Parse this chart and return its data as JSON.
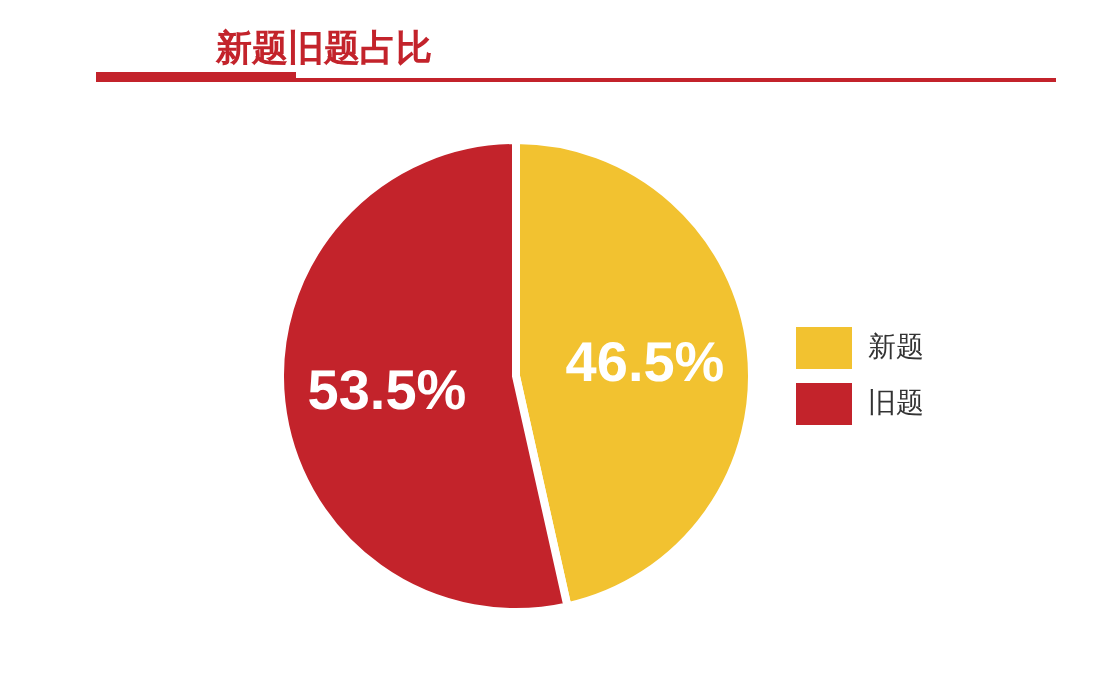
{
  "chart_data": {
    "type": "pie",
    "title": "新题旧题占比",
    "categories": [
      "新题",
      "旧题"
    ],
    "values": [
      46.5,
      53.5
    ],
    "colors": [
      "#f2c230",
      "#c3232b"
    ],
    "value_labels": [
      "46.5%",
      "53.5%"
    ],
    "legend": "right"
  }
}
